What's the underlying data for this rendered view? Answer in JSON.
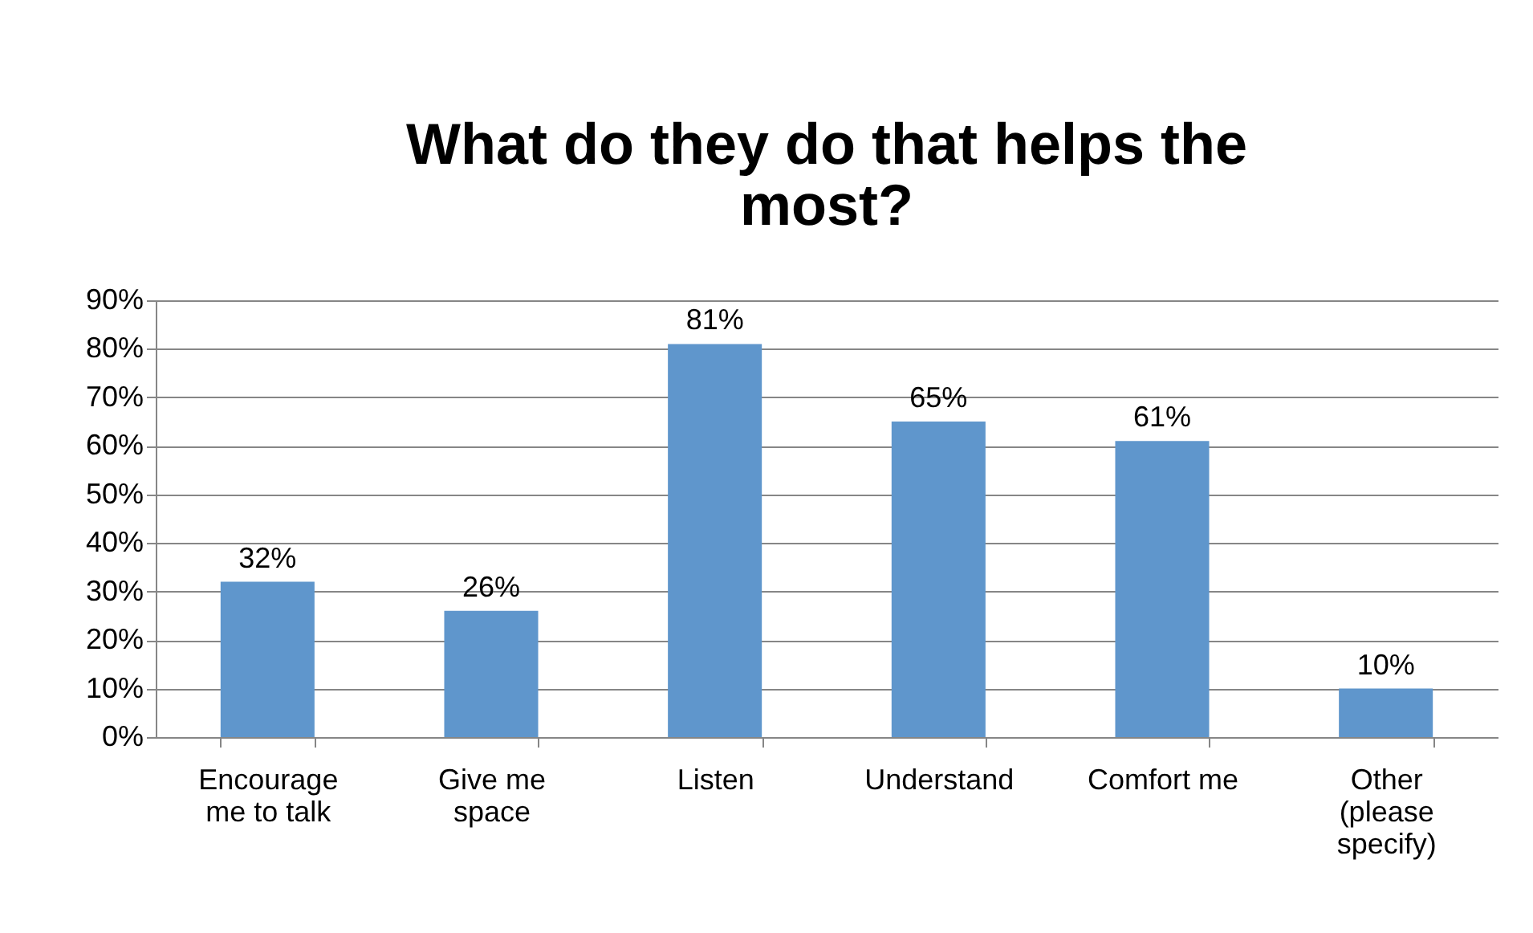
{
  "chart_data": {
    "type": "bar",
    "title": "What do they do that helps the most?",
    "categories": [
      "Encourage me to talk",
      "Give me space",
      "Listen",
      "Understand",
      "Comfort me",
      "Other (please specify)"
    ],
    "values": [
      32,
      26,
      81,
      65,
      61,
      10
    ],
    "value_labels": [
      "32%",
      "26%",
      "81%",
      "65%",
      "61%",
      "10%"
    ],
    "color": "#5f96cc",
    "ylim": [
      0,
      90
    ],
    "yticks": [
      {
        "value": 0,
        "label": "0%"
      },
      {
        "value": 10,
        "label": "10%"
      },
      {
        "value": 20,
        "label": "20%"
      },
      {
        "value": 30,
        "label": "30%"
      },
      {
        "value": 40,
        "label": "40%"
      },
      {
        "value": 50,
        "label": "50%"
      },
      {
        "value": 60,
        "label": "60%"
      },
      {
        "value": 70,
        "label": "70%"
      },
      {
        "value": 80,
        "label": "80%"
      },
      {
        "value": 90,
        "label": "90%"
      }
    ],
    "grid": "y"
  }
}
